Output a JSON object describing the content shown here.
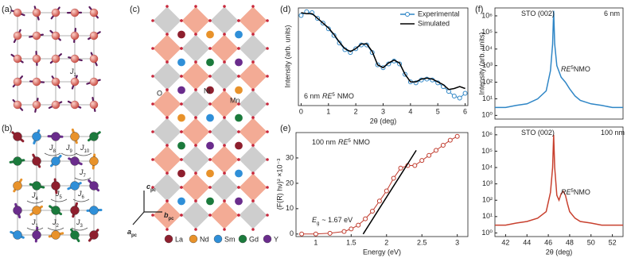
{
  "panel_labels": [
    "(a)",
    "(b)",
    "(c)",
    "(d)",
    "(e)",
    "(f)"
  ],
  "panel_a": {
    "coupling": {
      "main": "J",
      "sub": "1"
    }
  },
  "panel_b": {
    "couplings": [
      {
        "main": "J",
        "sub": "1"
      },
      {
        "main": "J",
        "sub": "2"
      },
      {
        "main": "J",
        "sub": "3"
      },
      {
        "main": "J",
        "sub": "4"
      },
      {
        "main": "J",
        "sub": "5"
      },
      {
        "main": "J",
        "sub": "6"
      },
      {
        "main": "J",
        "sub": "7"
      },
      {
        "main": "J",
        "sub": "8"
      },
      {
        "main": "J",
        "sub": "9"
      },
      {
        "main": "J",
        "sub": "10"
      }
    ]
  },
  "panel_c": {
    "site_labels": [
      "O",
      "Ni",
      "Mn"
    ],
    "axes": [
      {
        "main": "c",
        "sub": "pc"
      },
      {
        "main": "b",
        "sub": "pc"
      },
      {
        "main": "a",
        "sub": "pc"
      }
    ],
    "legend": [
      "La",
      "Nd",
      "Sm",
      "Gd",
      "Y"
    ],
    "legend_colors": [
      "#8e1f2e",
      "#e8922a",
      "#2f8fd8",
      "#1b7a3c",
      "#6a2c8c"
    ]
  },
  "chart_data": [
    {
      "type": "line",
      "xlabel": "2θ (deg)",
      "ylabel": "Intensity (arb. units)",
      "xlim": [
        -0.1,
        6.1
      ],
      "ylim": [
        0,
        10.3
      ],
      "xticks": [
        0,
        1,
        2,
        3,
        4,
        5,
        6
      ],
      "x": [
        0,
        0.2,
        0.4,
        0.6,
        0.8,
        1.0,
        1.2,
        1.4,
        1.6,
        1.8,
        2.0,
        2.2,
        2.4,
        2.6,
        2.8,
        3.0,
        3.2,
        3.4,
        3.6,
        3.8,
        4.0,
        4.2,
        4.4,
        4.6,
        4.8,
        5.0,
        5.2,
        5.4,
        5.6,
        5.8,
        6.0
      ],
      "series": [
        {
          "name": "Experimental",
          "color": "#2f86c6",
          "marker": "open-circle",
          "values": [
            9.5,
            9.9,
            9.8,
            9.2,
            8.7,
            8.1,
            7.4,
            6.6,
            5.9,
            5.6,
            6.0,
            6.4,
            6.4,
            5.6,
            4.3,
            4.0,
            4.4,
            4.7,
            4.4,
            3.3,
            2.5,
            2.4,
            2.7,
            2.8,
            2.7,
            2.4,
            2.0,
            1.5,
            1.0,
            0.8,
            1.3
          ]
        },
        {
          "name": "Simulated",
          "color": "#000000",
          "values": [
            9.8,
            9.7,
            9.7,
            9.2,
            8.7,
            8.2,
            7.5,
            6.7,
            6.0,
            5.7,
            6.0,
            6.5,
            6.5,
            5.7,
            4.3,
            4.0,
            4.5,
            4.8,
            4.5,
            3.3,
            2.5,
            2.5,
            2.8,
            2.9,
            2.8,
            2.5,
            2.2,
            1.7,
            1.8,
            2.0,
            1.8
          ]
        }
      ],
      "annotations": [
        {
          "lead": "6 nm",
          "italic": "RE",
          "sup": "5",
          "tail": "NMO"
        }
      ]
    },
    {
      "type": "line",
      "xlabel": "Energy (eV)",
      "ylabel": "(F(R) hν)² ×10⁻³",
      "xlim": [
        0.72,
        3.15
      ],
      "ylim": [
        -1,
        40
      ],
      "xticks": [
        1.0,
        1.5,
        2.0,
        2.5,
        3.0
      ],
      "yticks": [
        0,
        10,
        20,
        30
      ],
      "series": [
        {
          "color": "#c0392b",
          "marker": "open-circle",
          "x": [
            0.8,
            1.0,
            1.2,
            1.4,
            1.5,
            1.6,
            1.7,
            1.8,
            1.9,
            2.0,
            2.1,
            2.2,
            2.3,
            2.4,
            2.5,
            2.6,
            2.7,
            2.8,
            2.9,
            3.0
          ],
          "values": [
            0,
            0,
            0.3,
            1,
            2,
            3.5,
            6,
            9,
            13,
            17,
            22,
            26,
            27,
            27,
            29,
            31,
            33,
            35,
            37,
            38.5
          ]
        },
        {
          "color": "#000000",
          "x": [
            1.67,
            2.42
          ],
          "values": [
            0,
            33
          ]
        }
      ],
      "annotations": [
        {
          "lead": "100 nm",
          "italic": "RE",
          "sup": "5",
          "tail": "NMO"
        },
        {
          "italic": "E",
          "sub": "g",
          "tail": "~ 1.67 eV"
        }
      ]
    },
    {
      "type": "line",
      "ylabel": "Intensity (arb. units)",
      "ylog": true,
      "xlim": [
        41,
        53
      ],
      "ylim": [
        0.6,
        3000000
      ],
      "yticks": [
        {
          "value": 1,
          "label": "10⁰"
        },
        {
          "value": 10,
          "label": "10¹"
        },
        {
          "value": 100,
          "label": "10²"
        },
        {
          "value": 1000,
          "label": "10³"
        },
        {
          "value": 10000,
          "label": "10⁴"
        },
        {
          "value": 100000,
          "label": "10⁵"
        },
        {
          "value": 1000000,
          "label": "10⁶"
        }
      ],
      "x": [
        41,
        42,
        43,
        44,
        45,
        45.8,
        46.2,
        46.4,
        46.5,
        46.6,
        46.8,
        47.2,
        47.6,
        48,
        48.5,
        49,
        50,
        51,
        52,
        53
      ],
      "series": [
        {
          "color": "#2f86c6",
          "values": [
            3,
            3,
            4,
            5,
            10,
            30,
            500,
            20000,
            2000000,
            20000,
            1000,
            200,
            100,
            40,
            15,
            8,
            5,
            4,
            3,
            3
          ]
        }
      ],
      "annotations": [
        {
          "lead": "STO (002)"
        },
        {
          "lead": "6 nm"
        },
        {
          "italic": "RE",
          "sup": "5",
          "tail": "NMO"
        }
      ]
    },
    {
      "type": "line",
      "xlabel": "2θ (deg)",
      "ylog": true,
      "xlim": [
        41,
        53
      ],
      "ylim": [
        0.6,
        3000000
      ],
      "xticks": [
        42,
        44,
        46,
        48,
        50,
        52
      ],
      "yticks": [
        {
          "value": 1,
          "label": "10⁰"
        },
        {
          "value": 10,
          "label": "10¹"
        },
        {
          "value": 100,
          "label": "10²"
        },
        {
          "value": 1000,
          "label": "10³"
        },
        {
          "value": 10000,
          "label": "10⁴"
        },
        {
          "value": 100000,
          "label": "10⁵"
        },
        {
          "value": 1000000,
          "label": "10⁶"
        }
      ],
      "x": [
        41,
        42,
        43,
        44,
        45,
        45.8,
        46.2,
        46.4,
        46.5,
        46.6,
        46.8,
        47.0,
        47.2,
        47.4,
        47.6,
        47.8,
        48,
        48.5,
        49,
        50,
        51,
        52,
        53
      ],
      "series": [
        {
          "color": "#c8402e",
          "values": [
            3,
            3,
            4,
            5,
            8,
            20,
            300,
            10000,
            1000000,
            10000,
            200,
            100,
            250,
            350,
            200,
            60,
            20,
            8,
            5,
            4,
            3,
            3,
            3
          ]
        }
      ],
      "annotations": [
        {
          "lead": "STO (002)"
        },
        {
          "lead": "100 nm"
        },
        {
          "italic": "RE",
          "sup": "5",
          "tail": "NMO"
        }
      ]
    }
  ]
}
